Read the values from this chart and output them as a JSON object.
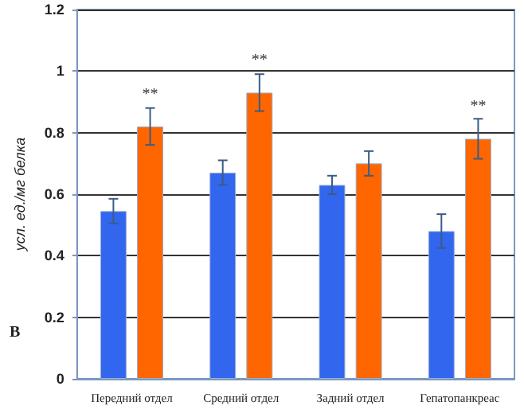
{
  "chart_data": {
    "type": "bar",
    "ylabel": "усл. ед./мг белка",
    "categories": [
      "Передний отдел",
      "Средний отдел",
      "Задний отдел",
      "Гепатопанкреас"
    ],
    "series": [
      {
        "color": "#3366ee",
        "values": [
          0.545,
          0.67,
          0.63,
          0.48
        ],
        "errors": [
          0.04,
          0.04,
          0.03,
          0.055
        ]
      },
      {
        "color": "#ff6600",
        "values": [
          0.82,
          0.93,
          0.7,
          0.78
        ],
        "errors": [
          0.06,
          0.06,
          0.04,
          0.065
        ]
      }
    ],
    "ylim": [
      0,
      1.2
    ],
    "yticks": [
      0,
      0.2,
      0.4,
      0.6,
      0.8,
      1,
      1.2
    ],
    "grid": "y",
    "annotations": [
      {
        "text": "**",
        "x": "Передний отдел",
        "y": 0.82
      },
      {
        "text": "**",
        "x": "Средний отдел",
        "y": 0.93
      },
      {
        "text": "**",
        "x": "Гепатопанкреас",
        "y": 0.78
      },
      "В"
    ]
  }
}
